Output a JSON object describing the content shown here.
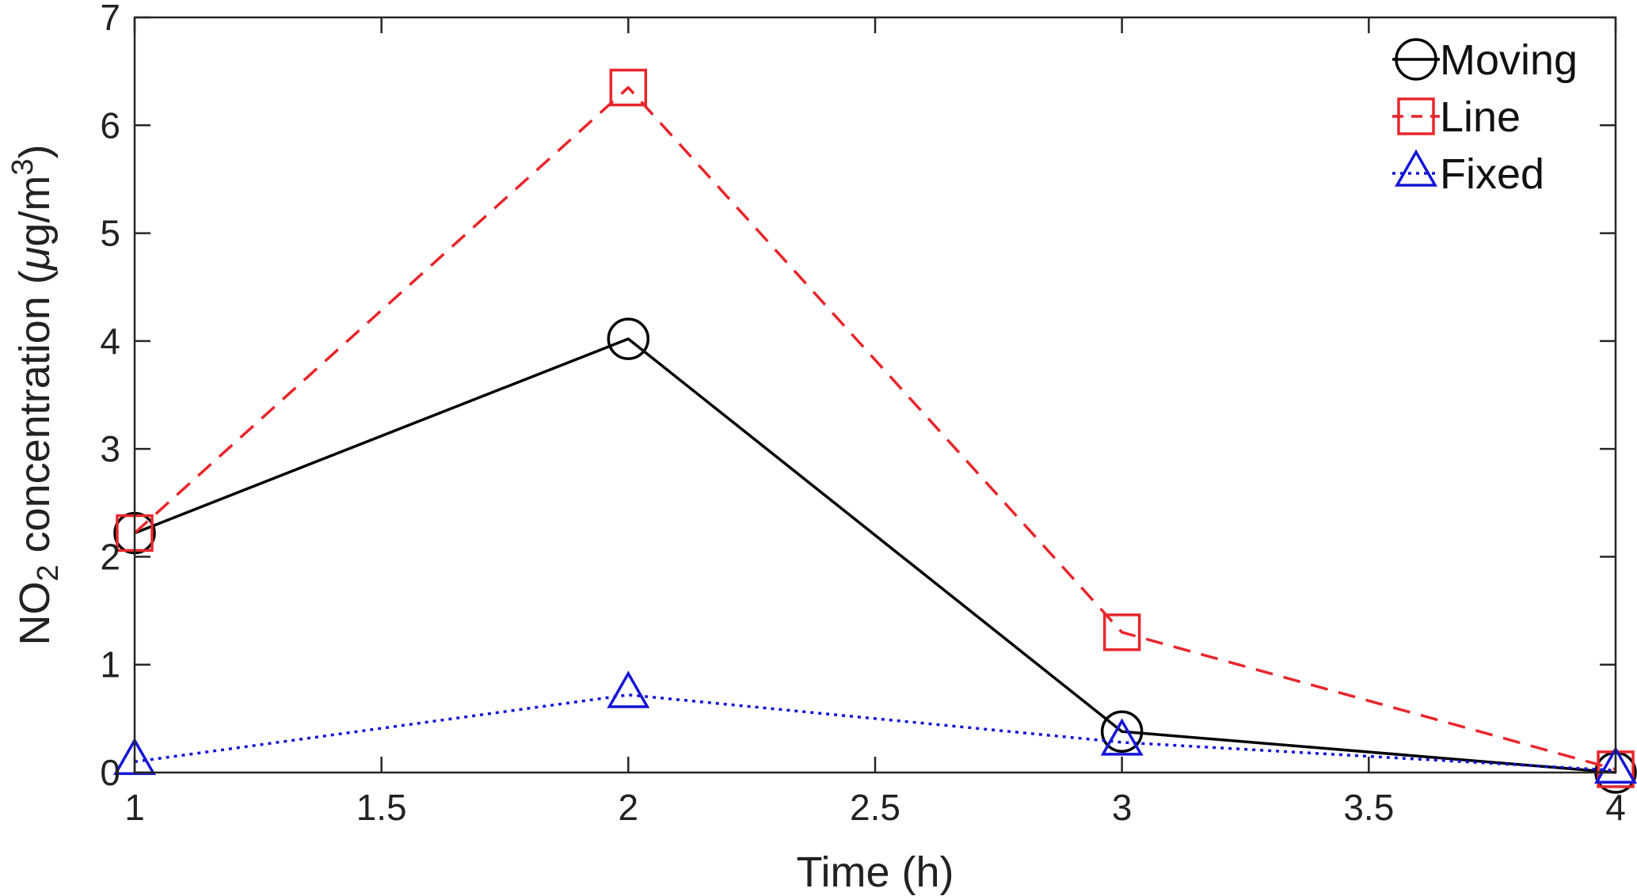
{
  "chart_data": {
    "type": "line",
    "xlabel": "Time (h)",
    "ylabel": {
      "prefix": "NO",
      "sub": "2",
      "middle": " concentration (",
      "mu": "μ",
      "units": "g/m",
      "sup": "3",
      "close": ")"
    },
    "xlim": [
      1,
      4
    ],
    "ylim": [
      0,
      7
    ],
    "xticks": [
      1,
      1.5,
      2,
      2.5,
      3,
      3.5,
      4
    ],
    "xtick_labels": [
      "1",
      "1.5",
      "2",
      "2.5",
      "3",
      "3.5",
      "4"
    ],
    "yticks": [
      0,
      1,
      2,
      3,
      4,
      5,
      6,
      7
    ],
    "ytick_labels": [
      "0",
      "1",
      "2",
      "3",
      "4",
      "5",
      "6",
      "7"
    ],
    "grid": false,
    "legend_position": "top-right",
    "series": [
      {
        "name": "Moving",
        "color": "#000000",
        "line_style": "solid",
        "marker": "circle",
        "x": [
          1,
          2,
          3,
          4
        ],
        "y": [
          2.22,
          4.02,
          0.38,
          0.0
        ]
      },
      {
        "name": "Line",
        "color": "#e8262b",
        "line_style": "dashed",
        "marker": "square",
        "x": [
          1,
          2,
          3,
          4
        ],
        "y": [
          2.22,
          6.35,
          1.3,
          0.03
        ]
      },
      {
        "name": "Fixed",
        "color": "#1515d8",
        "line_style": "dotted",
        "marker": "triangle",
        "x": [
          1,
          2,
          3,
          4
        ],
        "y": [
          0.1,
          0.72,
          0.28,
          0.02
        ]
      }
    ]
  }
}
